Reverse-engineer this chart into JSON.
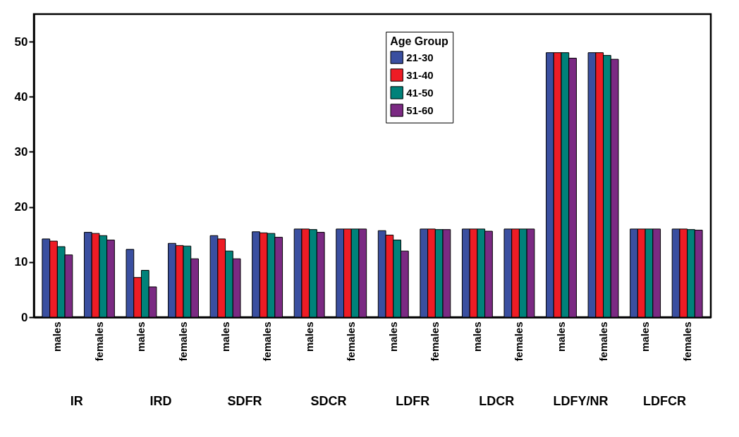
{
  "chart_data": {
    "type": "bar",
    "legend_title": "Age Group",
    "legend": "top",
    "categories": [
      "males",
      "females",
      "males",
      "females",
      "males",
      "females",
      "males",
      "females",
      "males",
      "females",
      "males",
      "females",
      "males",
      "females",
      "males",
      "females"
    ],
    "annotations": [
      "IR",
      "IRD",
      "SDFR",
      "SDCR",
      "LDFR",
      "LDCR",
      "LDFY/NR",
      "LDFCR"
    ],
    "series": [
      {
        "name": "21-30",
        "color": "#3a4fa0",
        "values": [
          14.2,
          15.4,
          12.3,
          13.4,
          14.8,
          15.5,
          16,
          16,
          15.7,
          16,
          16,
          16,
          48,
          48,
          16,
          16
        ]
      },
      {
        "name": "31-40",
        "color": "#ee1c25",
        "values": [
          13.8,
          15.2,
          7.2,
          13.0,
          14.2,
          15.3,
          16,
          16,
          14.9,
          16,
          16,
          16,
          48,
          48,
          16,
          16
        ]
      },
      {
        "name": "41-50",
        "color": "#00827a",
        "values": [
          12.8,
          14.8,
          8.5,
          12.9,
          12.0,
          15.2,
          15.9,
          16,
          14.0,
          15.9,
          16,
          16,
          48,
          47.5,
          16,
          15.9
        ]
      },
      {
        "name": "51-60",
        "color": "#7b2a83",
        "values": [
          11.3,
          14.0,
          5.5,
          10.6,
          10.6,
          14.5,
          15.4,
          16,
          12.0,
          15.9,
          15.6,
          16,
          47,
          46.8,
          16,
          15.8
        ]
      }
    ],
    "ylim": [
      0,
      55
    ],
    "yticks": [
      0,
      10,
      20,
      30,
      40,
      50
    ],
    "grid": false
  }
}
